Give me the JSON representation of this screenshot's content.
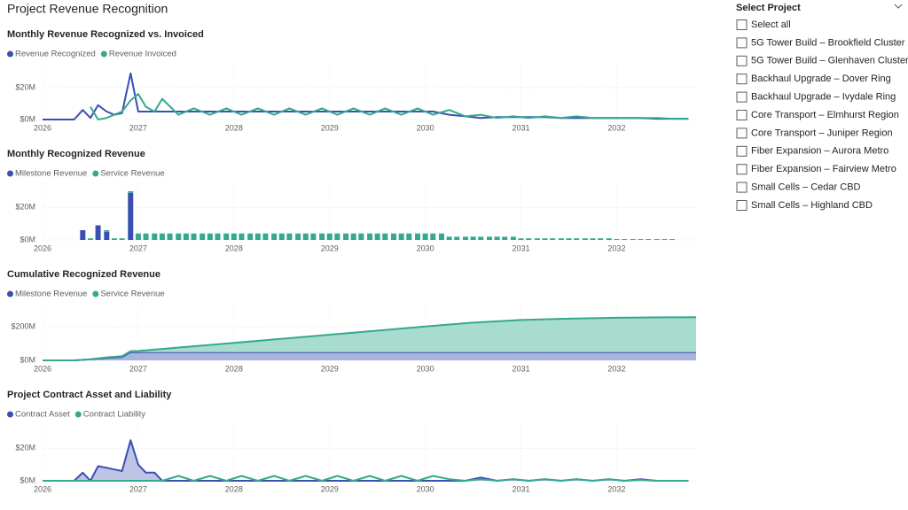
{
  "page_title": "Project Revenue Recognition",
  "slicer": {
    "title": "Select Project",
    "items": [
      "Select all",
      "5G Tower Build – Brookfield Cluster",
      "5G Tower Build – Glenhaven Cluster",
      "Backhaul Upgrade – Dover Ring",
      "Backhaul Upgrade – Ivydale Ring",
      "Core Transport – Elmhurst Region",
      "Core Transport – Juniper Region",
      "Fiber Expansion – Aurora Metro",
      "Fiber Expansion – Fairview Metro",
      "Small Cells – Cedar CBD",
      "Small Cells – Highland CBD"
    ]
  },
  "chart_data": [
    {
      "type": "line",
      "title": "Monthly Revenue Recognized vs. Invoiced",
      "x": [
        2026,
        2026.25,
        2026.33,
        2026.42,
        2026.5,
        2026.58,
        2026.67,
        2026.75,
        2026.83,
        2026.92,
        2027,
        2027.08,
        2027.17,
        2027.25,
        2027.42,
        2027.58,
        2027.75,
        2027.92,
        2028.08,
        2028.25,
        2028.42,
        2028.58,
        2028.75,
        2028.92,
        2029.08,
        2029.25,
        2029.42,
        2029.58,
        2029.75,
        2029.92,
        2030.08,
        2030.25,
        2030.42,
        2030.58,
        2030.75,
        2030.92,
        2031.08,
        2031.25,
        2031.42,
        2031.58,
        2031.75,
        2031.92,
        2032.08,
        2032.25,
        2032.42,
        2032.58,
        2032.75
      ],
      "series": [
        {
          "name": "Revenue Recognized",
          "color": "#3a4fb2",
          "values": [
            0,
            0,
            0,
            6,
            1,
            9,
            5,
            3,
            4,
            29,
            5,
            5,
            5,
            5,
            5,
            5,
            5,
            5,
            5,
            5,
            5,
            5,
            5,
            5,
            5,
            5,
            5,
            5,
            5,
            5,
            5,
            3,
            2,
            1,
            1.5,
            1.5,
            1.5,
            1.5,
            1,
            1,
            1,
            1,
            1,
            1,
            0.5,
            0.5,
            0.5
          ]
        },
        {
          "name": "Revenue Invoiced",
          "color": "#34a98f",
          "values": [
            null,
            null,
            null,
            null,
            8,
            0,
            1,
            3,
            5,
            12,
            16,
            8,
            5,
            13,
            3,
            7,
            3,
            7,
            3,
            7,
            3,
            7,
            3,
            7,
            3,
            7,
            3,
            7,
            3,
            7,
            3,
            6,
            2,
            3,
            1,
            2,
            1,
            2,
            1,
            2,
            1,
            1,
            1,
            1,
            1,
            0.5,
            0.5
          ]
        }
      ],
      "xlim": [
        2026,
        2032.83
      ],
      "xticks": [
        2026,
        2027,
        2028,
        2029,
        2030,
        2031,
        2032
      ],
      "ylim": [
        0,
        30
      ],
      "yticks": [
        {
          "value": 0,
          "label": "$0M"
        },
        {
          "value": 20,
          "label": "$20M"
        }
      ],
      "grid": true
    },
    {
      "type": "bar",
      "title": "Monthly Recognized Revenue",
      "x": [
        2026.42,
        2026.5,
        2026.58,
        2026.67,
        2026.75,
        2026.83,
        2026.92,
        2027,
        2027.08,
        2027.17,
        2027.25,
        2027.33,
        2027.42,
        2027.5,
        2027.58,
        2027.67,
        2027.75,
        2027.83,
        2027.92,
        2028,
        2028.08,
        2028.17,
        2028.25,
        2028.33,
        2028.42,
        2028.5,
        2028.58,
        2028.67,
        2028.75,
        2028.83,
        2028.92,
        2029,
        2029.08,
        2029.17,
        2029.25,
        2029.33,
        2029.42,
        2029.5,
        2029.58,
        2029.67,
        2029.75,
        2029.83,
        2029.92,
        2030,
        2030.08,
        2030.17,
        2030.25,
        2030.33,
        2030.42,
        2030.5,
        2030.58,
        2030.67,
        2030.75,
        2030.83,
        2030.92,
        2031,
        2031.08,
        2031.17,
        2031.25,
        2031.33,
        2031.42,
        2031.5,
        2031.58,
        2031.67,
        2031.75,
        2031.83,
        2031.92,
        2032,
        2032.08,
        2032.17,
        2032.25,
        2032.33,
        2032.42,
        2032.5,
        2032.58
      ],
      "series": [
        {
          "name": "Milestone Revenue",
          "color": "#3a4fb2",
          "values": [
            6,
            0,
            9,
            5,
            0,
            0,
            29,
            0,
            0,
            0,
            0,
            0,
            0,
            0,
            0,
            0,
            0,
            0,
            0,
            0,
            0,
            0,
            0,
            0,
            0,
            0,
            0,
            0,
            0,
            0,
            0,
            0,
            0,
            0,
            0,
            0,
            0,
            0,
            0,
            0,
            0,
            0,
            0,
            0,
            0,
            0,
            0,
            0,
            0,
            0,
            0,
            0,
            0,
            0,
            0,
            0,
            0,
            0,
            0,
            0,
            0,
            0,
            0,
            0,
            0,
            0,
            0,
            0,
            0,
            0,
            0,
            0,
            0,
            0,
            0
          ]
        },
        {
          "name": "Service Revenue",
          "color": "#34a98f",
          "values": [
            0,
            1,
            0,
            1,
            1,
            1,
            1,
            4,
            4,
            4,
            4,
            4,
            4,
            4,
            4,
            4,
            4,
            4,
            4,
            4,
            4,
            4,
            4,
            4,
            4,
            4,
            4,
            4,
            4,
            4,
            4,
            4,
            4,
            4,
            4,
            4,
            4,
            4,
            4,
            4,
            4,
            4,
            4,
            4,
            4,
            4,
            2,
            2,
            2,
            2,
            2,
            2,
            2,
            2,
            2,
            1,
            1,
            1,
            1,
            1,
            1,
            1,
            1,
            1,
            1,
            1,
            1,
            0.5,
            0.5,
            0.5,
            0.5,
            0.5,
            0.5,
            0.5,
            0.5
          ]
        }
      ],
      "xlim": [
        2026,
        2032.83
      ],
      "xticks": [
        2026,
        2027,
        2028,
        2029,
        2030,
        2031,
        2032
      ],
      "ylim": [
        0,
        30
      ],
      "yticks": [
        {
          "value": 0,
          "label": "$0M"
        },
        {
          "value": 20,
          "label": "$20M"
        }
      ],
      "grid": true
    },
    {
      "type": "area",
      "title": "Cumulative Recognized Revenue",
      "x": [
        2026,
        2026.33,
        2026.5,
        2026.67,
        2026.83,
        2026.92,
        2027,
        2028,
        2029,
        2030,
        2030.25,
        2030.5,
        2031,
        2031.5,
        2032,
        2032.5,
        2032.83
      ],
      "series": [
        {
          "name": "Milestone Revenue",
          "color": "#3a4fb2",
          "fill": "#aab3de",
          "values": [
            0,
            0,
            6,
            15,
            20,
            49,
            49,
            49,
            49,
            49,
            49,
            49,
            49,
            49,
            49,
            49,
            49
          ]
        },
        {
          "name": "Service Revenue",
          "color": "#34a98f",
          "fill": "#a7dccf",
          "values": [
            0,
            0,
            1,
            3,
            5,
            6,
            7,
            55,
            104,
            153,
            165,
            176,
            192,
            200,
            205,
            208,
            209
          ]
        }
      ],
      "xlim": [
        2026,
        2032.83
      ],
      "xticks": [
        2026,
        2027,
        2028,
        2029,
        2030,
        2031,
        2032
      ],
      "ylim": [
        0,
        280
      ],
      "yticks": [
        {
          "value": 0,
          "label": "$0M"
        },
        {
          "value": 200,
          "label": "$200M"
        }
      ],
      "grid": true
    },
    {
      "type": "line",
      "title": "Project Contract Asset and Liability",
      "x": [
        2026,
        2026.25,
        2026.33,
        2026.42,
        2026.5,
        2026.58,
        2026.67,
        2026.75,
        2026.83,
        2026.92,
        2027,
        2027.08,
        2027.17,
        2027.25,
        2027.42,
        2027.58,
        2027.75,
        2027.92,
        2028.08,
        2028.25,
        2028.42,
        2028.58,
        2028.75,
        2028.92,
        2029.08,
        2029.25,
        2029.42,
        2029.58,
        2029.75,
        2029.92,
        2030.08,
        2030.25,
        2030.42,
        2030.58,
        2030.75,
        2030.92,
        2031.08,
        2031.25,
        2031.42,
        2031.58,
        2031.75,
        2031.92,
        2032.08,
        2032.25,
        2032.42,
        2032.58,
        2032.75
      ],
      "series": [
        {
          "name": "Contract Asset",
          "color": "#3a4fb2",
          "fill": "#b3badf",
          "values": [
            0,
            0,
            0,
            5,
            0,
            9,
            8,
            7,
            6,
            25,
            10,
            5,
            5,
            0,
            0,
            0,
            0,
            0,
            0,
            0,
            0,
            0,
            0,
            0,
            0,
            0,
            0,
            0,
            0,
            0,
            0,
            0,
            0,
            2,
            0,
            1,
            0,
            1,
            0,
            1,
            0,
            1,
            0,
            1,
            0,
            0,
            0
          ]
        },
        {
          "name": "Contract Liability",
          "color": "#34a98f",
          "values": [
            0,
            0,
            0,
            0,
            0,
            0,
            0,
            0,
            0,
            0,
            0,
            0,
            0,
            0,
            3,
            0,
            3,
            0,
            3,
            0,
            3,
            0,
            3,
            0,
            3,
            0,
            3,
            0,
            3,
            0,
            3,
            1,
            0,
            1,
            0,
            1,
            0,
            1,
            0,
            1,
            0,
            1,
            0,
            0.5,
            0,
            0,
            0
          ]
        }
      ],
      "xlim": [
        2026,
        2032.83
      ],
      "xticks": [
        2026,
        2027,
        2028,
        2029,
        2030,
        2031,
        2032
      ],
      "ylim": [
        0,
        30
      ],
      "yticks": [
        {
          "value": 0,
          "label": "$0M"
        },
        {
          "value": 20,
          "label": "$20M"
        }
      ],
      "grid": true
    }
  ]
}
